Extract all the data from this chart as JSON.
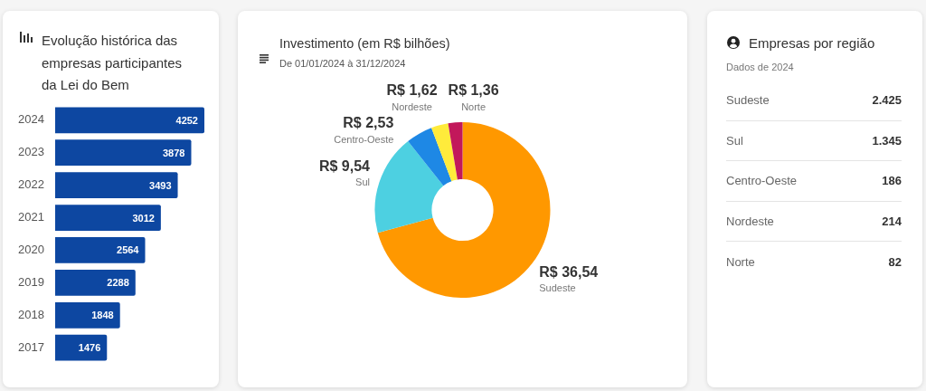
{
  "chart_data": [
    {
      "type": "bar",
      "orientation": "horizontal",
      "title": "Evolução histórica das empresas participantes da Lei do Bem",
      "categories": [
        "2024",
        "2023",
        "2022",
        "2021",
        "2020",
        "2019",
        "2018",
        "2017"
      ],
      "values": [
        4252,
        3878,
        3493,
        3012,
        2564,
        2288,
        1848,
        1476
      ],
      "color": "#0d47a1",
      "data_labels": true,
      "tick_labels": "y"
    },
    {
      "type": "donut",
      "title": "Investimento (em R$ bilhões)",
      "subtitle": "De 01/01/2024 à 31/12/2024",
      "categories": [
        "Sudeste",
        "Sul",
        "Centro-Oeste",
        "Nordeste",
        "Norte"
      ],
      "values": [
        36.54,
        9.54,
        2.53,
        1.62,
        1.36
      ],
      "colors": [
        "#ff9800",
        "#4dd0e1",
        "#1e88e5",
        "#ffeb3b",
        "#c2185b"
      ],
      "value_labels": [
        "R$ 36,54",
        "R$ 9,54",
        "R$ 2,53",
        "R$ 1,62",
        "R$ 1,36"
      ]
    },
    {
      "type": "other",
      "title": "Empresas por região",
      "subtitle": "Dados de 2024",
      "categories": [
        "Sudeste",
        "Sul",
        "Centro-Oeste",
        "Nordeste",
        "Norte"
      ],
      "values": [
        2425,
        1345,
        186,
        214,
        82
      ],
      "value_labels": [
        "2.425",
        "1.345",
        "186",
        "214",
        "82"
      ]
    }
  ]
}
